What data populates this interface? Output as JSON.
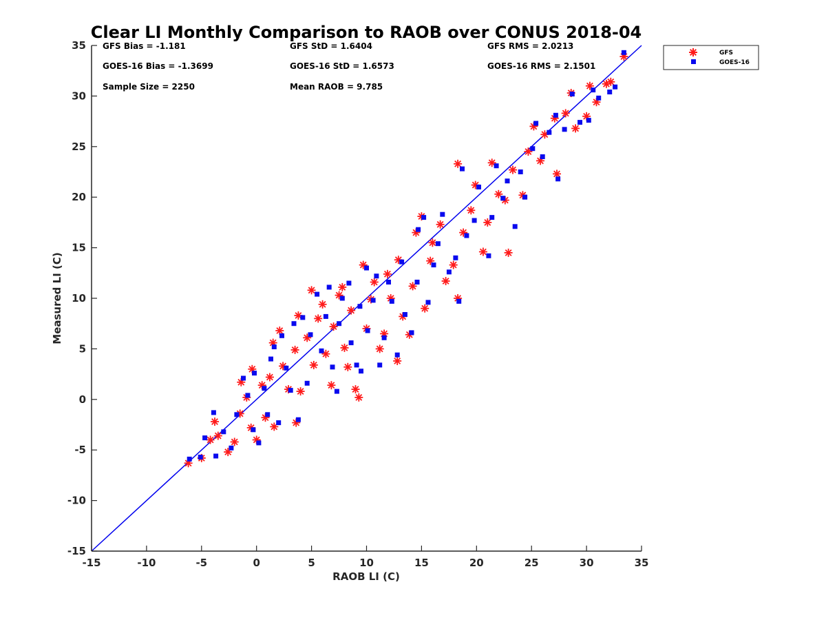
{
  "chart_data": {
    "type": "scatter",
    "title": "Clear LI Monthly Comparison to RAOB over CONUS 2018-04",
    "xlabel": "RAOB LI (C)",
    "ylabel": "Measured LI (C)",
    "xlim": [
      -15,
      35
    ],
    "ylim": [
      -15,
      35
    ],
    "xticks": [
      "-15",
      "-10",
      "-5",
      "0",
      "5",
      "10",
      "15",
      "20",
      "25",
      "30",
      "35"
    ],
    "yticks": [
      "35",
      "30",
      "25",
      "20",
      "15",
      "10",
      "5",
      "0",
      "-5",
      "-10",
      "-15"
    ],
    "grid": false,
    "legend_position": "outside-top-right",
    "reference_line": {
      "x": [
        -15,
        35
      ],
      "y": [
        -15,
        35
      ],
      "color": "#0000ee"
    },
    "stats": [
      "GFS Bias = -1.181",
      "GFS StD = 1.6404",
      "GFS RMS = 2.0213",
      "GOES-16 Bias = -1.3699",
      "GOES-16 StD = 1.6573",
      "GOES-16 RMS = 2.1501",
      "Sample Size = 2250",
      "Mean RAOB = 9.785"
    ],
    "series": [
      {
        "name": "GFS",
        "marker": "asterisk",
        "color": "#ff1a1a",
        "points": [
          [
            -6.2,
            -6.3
          ],
          [
            -5.0,
            -5.8
          ],
          [
            -4.2,
            -4.0
          ],
          [
            -3.8,
            -2.2
          ],
          [
            -3.5,
            -3.6
          ],
          [
            -2.6,
            -5.2
          ],
          [
            -2.0,
            -4.2
          ],
          [
            -1.5,
            -1.4
          ],
          [
            -1.4,
            1.7
          ],
          [
            -0.9,
            0.2
          ],
          [
            -0.5,
            -2.8
          ],
          [
            -0.4,
            3.0
          ],
          [
            0.0,
            -4.0
          ],
          [
            0.5,
            1.4
          ],
          [
            0.8,
            -1.8
          ],
          [
            1.2,
            2.2
          ],
          [
            1.5,
            5.6
          ],
          [
            1.6,
            -2.7
          ],
          [
            2.1,
            6.8
          ],
          [
            2.4,
            3.3
          ],
          [
            2.9,
            1.0
          ],
          [
            3.5,
            4.9
          ],
          [
            3.6,
            -2.3
          ],
          [
            3.8,
            8.3
          ],
          [
            4.0,
            0.8
          ],
          [
            4.6,
            6.1
          ],
          [
            5.0,
            10.8
          ],
          [
            5.2,
            3.4
          ],
          [
            5.6,
            8.0
          ],
          [
            6.0,
            9.4
          ],
          [
            6.3,
            4.5
          ],
          [
            6.8,
            1.4
          ],
          [
            7.0,
            7.2
          ],
          [
            7.5,
            10.3
          ],
          [
            7.8,
            11.1
          ],
          [
            8.0,
            5.1
          ],
          [
            8.3,
            3.2
          ],
          [
            8.6,
            8.8
          ],
          [
            9.0,
            1.0
          ],
          [
            9.3,
            0.2
          ],
          [
            9.7,
            13.3
          ],
          [
            10.0,
            7.0
          ],
          [
            10.4,
            9.9
          ],
          [
            10.7,
            11.6
          ],
          [
            11.2,
            5.0
          ],
          [
            11.6,
            6.5
          ],
          [
            11.9,
            12.4
          ],
          [
            12.2,
            10.0
          ],
          [
            12.8,
            3.8
          ],
          [
            12.9,
            13.8
          ],
          [
            13.3,
            8.2
          ],
          [
            13.9,
            6.4
          ],
          [
            14.2,
            11.2
          ],
          [
            14.5,
            16.5
          ],
          [
            15.0,
            18.1
          ],
          [
            15.3,
            9.0
          ],
          [
            15.8,
            13.7
          ],
          [
            16.0,
            15.5
          ],
          [
            16.7,
            17.3
          ],
          [
            17.2,
            11.7
          ],
          [
            17.9,
            13.3
          ],
          [
            18.3,
            10.0
          ],
          [
            18.3,
            23.3
          ],
          [
            18.8,
            16.5
          ],
          [
            19.5,
            18.7
          ],
          [
            19.9,
            21.2
          ],
          [
            20.6,
            14.6
          ],
          [
            21.0,
            17.5
          ],
          [
            21.4,
            23.4
          ],
          [
            22.0,
            20.3
          ],
          [
            22.6,
            19.7
          ],
          [
            22.9,
            14.5
          ],
          [
            23.3,
            22.7
          ],
          [
            24.2,
            20.2
          ],
          [
            24.7,
            24.5
          ],
          [
            25.2,
            27.0
          ],
          [
            25.8,
            23.6
          ],
          [
            26.2,
            26.2
          ],
          [
            27.1,
            27.8
          ],
          [
            27.3,
            22.3
          ],
          [
            28.1,
            28.3
          ],
          [
            28.6,
            30.3
          ],
          [
            29.0,
            26.8
          ],
          [
            30.0,
            28.0
          ],
          [
            30.3,
            31.0
          ],
          [
            30.9,
            29.4
          ],
          [
            31.8,
            31.2
          ],
          [
            32.2,
            31.4
          ],
          [
            33.4,
            33.9
          ]
        ]
      },
      {
        "name": "GOES-16",
        "marker": "square",
        "color": "#0a0aee",
        "points": [
          [
            -6.1,
            -5.9
          ],
          [
            -5.1,
            -5.7
          ],
          [
            -4.7,
            -3.8
          ],
          [
            -3.9,
            -1.3
          ],
          [
            -3.7,
            -5.6
          ],
          [
            -3.0,
            -3.2
          ],
          [
            -2.3,
            -4.8
          ],
          [
            -1.8,
            -1.5
          ],
          [
            -1.2,
            2.1
          ],
          [
            -0.8,
            0.4
          ],
          [
            -0.3,
            -3.0
          ],
          [
            -0.2,
            2.6
          ],
          [
            0.2,
            -4.3
          ],
          [
            0.7,
            1.1
          ],
          [
            1.0,
            -1.5
          ],
          [
            1.3,
            4.0
          ],
          [
            1.6,
            5.2
          ],
          [
            2.0,
            -2.3
          ],
          [
            2.3,
            6.3
          ],
          [
            2.7,
            3.1
          ],
          [
            3.1,
            0.9
          ],
          [
            3.4,
            7.5
          ],
          [
            3.8,
            -2.0
          ],
          [
            4.2,
            8.1
          ],
          [
            4.6,
            1.6
          ],
          [
            4.9,
            6.4
          ],
          [
            5.5,
            10.4
          ],
          [
            5.9,
            4.8
          ],
          [
            6.3,
            8.2
          ],
          [
            6.6,
            11.1
          ],
          [
            6.9,
            3.2
          ],
          [
            7.3,
            0.8
          ],
          [
            7.5,
            7.5
          ],
          [
            7.8,
            10.0
          ],
          [
            8.4,
            11.5
          ],
          [
            8.6,
            5.6
          ],
          [
            9.1,
            3.4
          ],
          [
            9.4,
            9.2
          ],
          [
            9.5,
            2.8
          ],
          [
            10.0,
            13.0
          ],
          [
            10.1,
            6.8
          ],
          [
            10.6,
            9.8
          ],
          [
            10.9,
            12.2
          ],
          [
            11.2,
            3.4
          ],
          [
            11.6,
            6.1
          ],
          [
            12.0,
            11.6
          ],
          [
            12.3,
            9.7
          ],
          [
            12.8,
            4.4
          ],
          [
            13.2,
            13.6
          ],
          [
            13.5,
            8.4
          ],
          [
            14.1,
            6.6
          ],
          [
            14.6,
            11.6
          ],
          [
            14.7,
            16.8
          ],
          [
            15.2,
            18.0
          ],
          [
            15.6,
            9.6
          ],
          [
            16.1,
            13.3
          ],
          [
            16.5,
            15.4
          ],
          [
            16.9,
            18.3
          ],
          [
            17.5,
            12.6
          ],
          [
            18.1,
            14.0
          ],
          [
            18.4,
            9.7
          ],
          [
            18.7,
            22.8
          ],
          [
            19.1,
            16.2
          ],
          [
            19.8,
            17.7
          ],
          [
            20.2,
            21.0
          ],
          [
            21.1,
            14.2
          ],
          [
            21.4,
            18.0
          ],
          [
            21.8,
            23.1
          ],
          [
            22.4,
            19.9
          ],
          [
            22.8,
            21.6
          ],
          [
            23.5,
            17.1
          ],
          [
            24.0,
            22.5
          ],
          [
            24.4,
            20.0
          ],
          [
            25.1,
            24.8
          ],
          [
            25.4,
            27.3
          ],
          [
            26.0,
            24.0
          ],
          [
            26.6,
            26.4
          ],
          [
            27.2,
            28.1
          ],
          [
            27.4,
            21.8
          ],
          [
            28.0,
            26.7
          ],
          [
            28.7,
            30.2
          ],
          [
            29.4,
            27.4
          ],
          [
            30.2,
            27.6
          ],
          [
            30.6,
            30.6
          ],
          [
            31.1,
            29.8
          ],
          [
            32.1,
            30.4
          ],
          [
            32.6,
            30.9
          ],
          [
            33.4,
            34.3
          ]
        ]
      }
    ]
  }
}
